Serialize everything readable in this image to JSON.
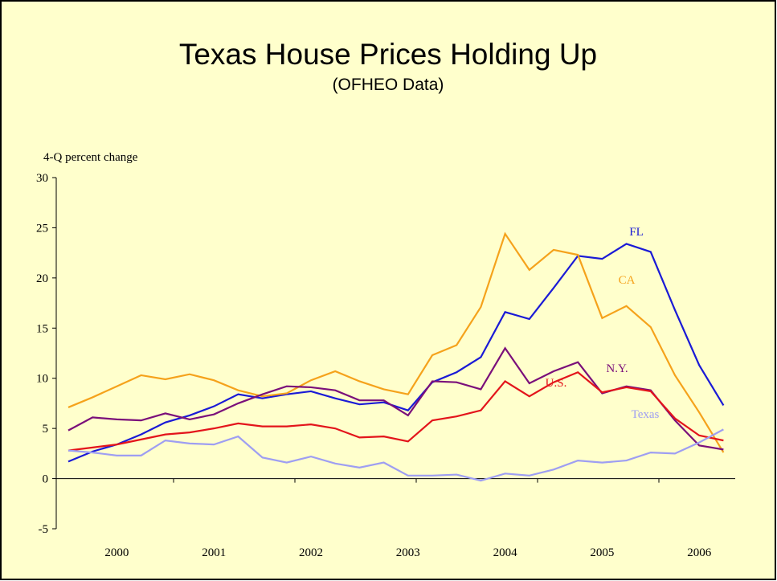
{
  "chart_data": {
    "type": "line",
    "title": "Texas House Prices Holding Up",
    "subtitle": "(OFHEO Data)",
    "y_axis_label": "4-Q percent change",
    "categories": [
      null,
      null,
      "2000",
      null,
      null,
      null,
      "2001",
      null,
      null,
      null,
      "2002",
      null,
      null,
      null,
      "2003",
      null,
      null,
      null,
      "2004",
      null,
      null,
      null,
      "2005",
      null,
      null,
      null,
      "2006",
      null
    ],
    "ylim": [
      -5,
      30
    ],
    "yticks": [
      -5,
      0,
      5,
      10,
      15,
      20,
      25,
      30
    ],
    "series": [
      {
        "name": "FL",
        "color": "#1a1ad6",
        "values": [
          1.7,
          2.7,
          3.4,
          4.4,
          5.6,
          6.3,
          7.2,
          8.4,
          8.0,
          8.4,
          8.7,
          8.0,
          7.4,
          7.6,
          6.8,
          9.6,
          10.6,
          12.1,
          16.6,
          15.9,
          19.0,
          22.2,
          21.9,
          23.4,
          22.6,
          16.8,
          11.3,
          7.3
        ]
      },
      {
        "name": "CA",
        "color": "#f5a21b",
        "values": [
          7.1,
          8.1,
          9.2,
          10.3,
          9.9,
          10.4,
          9.8,
          8.8,
          8.2,
          8.5,
          9.8,
          10.7,
          9.7,
          8.9,
          8.4,
          12.3,
          13.3,
          17.1,
          24.4,
          20.8,
          22.8,
          22.3,
          16.0,
          17.2,
          15.1,
          10.3,
          6.6,
          2.6
        ]
      },
      {
        "name": "N.Y.",
        "color": "#7a0f7a",
        "values": [
          4.8,
          6.1,
          5.9,
          5.8,
          6.5,
          5.9,
          6.4,
          7.5,
          8.4,
          9.2,
          9.1,
          8.8,
          7.8,
          7.8,
          6.3,
          9.7,
          9.6,
          8.9,
          13.0,
          9.5,
          10.7,
          11.6,
          8.5,
          9.2,
          8.8,
          5.8,
          3.3,
          2.9
        ]
      },
      {
        "name": "U.S.",
        "color": "#e3141b",
        "values": [
          2.8,
          3.1,
          3.4,
          3.9,
          4.4,
          4.6,
          5.0,
          5.5,
          5.2,
          5.2,
          5.4,
          5.0,
          4.1,
          4.2,
          3.7,
          5.8,
          6.2,
          6.8,
          9.7,
          8.2,
          9.6,
          10.6,
          8.6,
          9.1,
          8.7,
          6.0,
          4.3,
          3.8
        ]
      },
      {
        "name": "Texas",
        "color": "#9e9ef2",
        "values": [
          2.8,
          2.6,
          2.3,
          2.3,
          3.8,
          3.5,
          3.4,
          4.2,
          2.1,
          1.6,
          2.2,
          1.5,
          1.1,
          1.6,
          0.3,
          0.3,
          0.4,
          -0.2,
          0.5,
          0.3,
          0.9,
          1.8,
          1.6,
          1.8,
          2.6,
          2.5,
          3.6,
          4.9
        ]
      }
    ]
  }
}
